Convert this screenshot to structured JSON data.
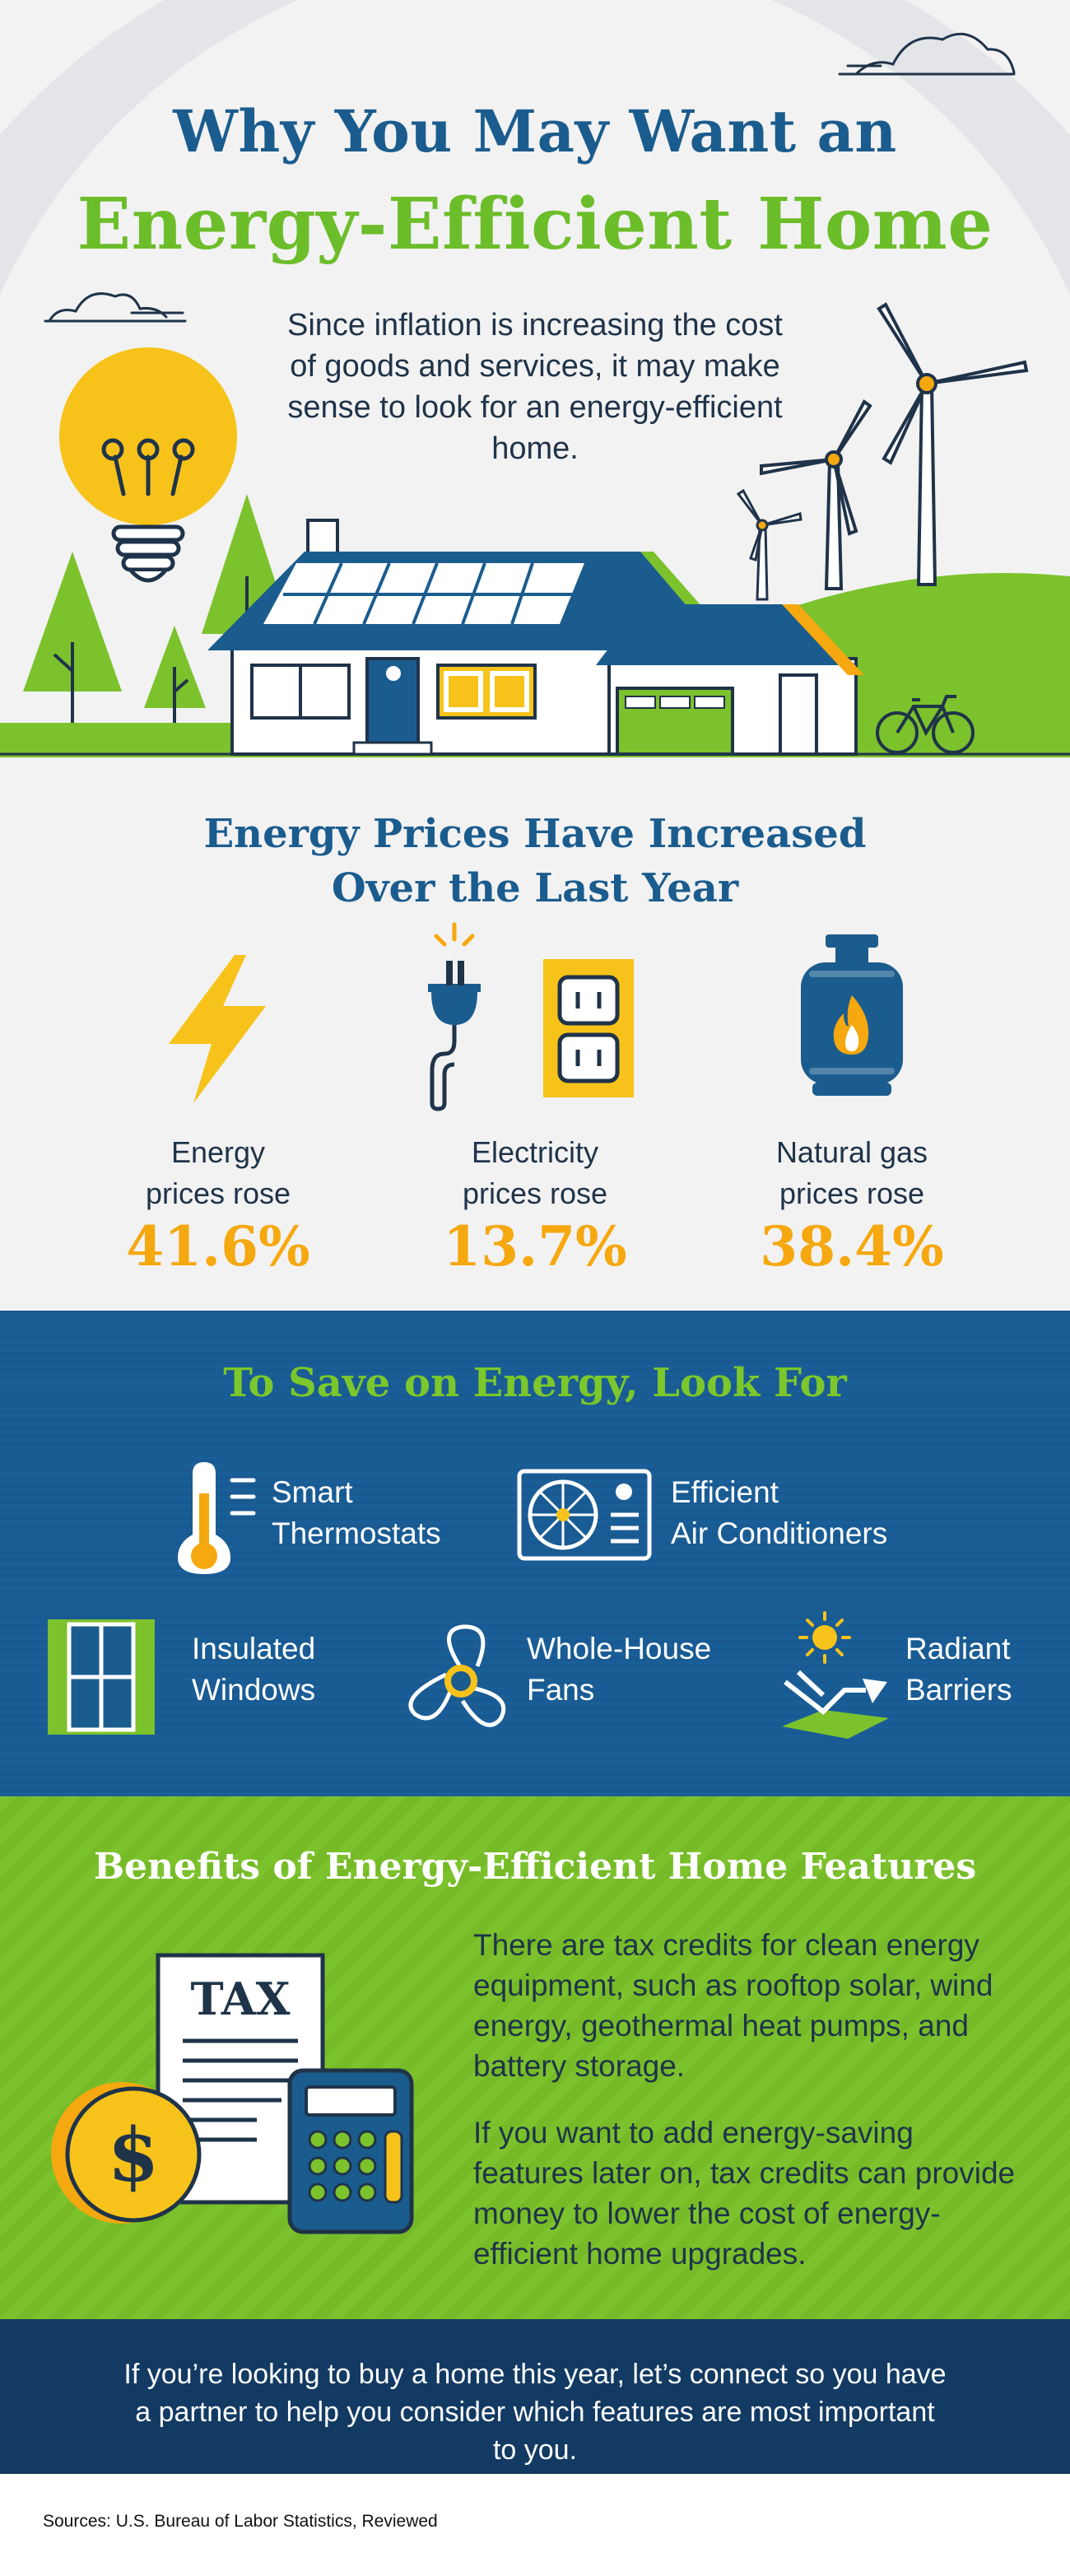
{
  "hero": {
    "title_line1": "Why You May Want an",
    "title_line2": "Energy-Efficient Home",
    "intro": "Since inflation is increasing the cost of goods and services, it may make sense to look for an energy-efficient home."
  },
  "prices": {
    "title_line1": "Energy Prices Have Increased",
    "title_line2": "Over the Last Year",
    "items": [
      {
        "label_line1": "Energy",
        "label_line2": "prices rose",
        "value": "41.6%",
        "icon": "lightning-bolt-icon"
      },
      {
        "label_line1": "Electricity",
        "label_line2": "prices rose",
        "value": "13.7%",
        "icon": "power-plug-outlet-icon"
      },
      {
        "label_line1": "Natural gas",
        "label_line2": "prices rose",
        "value": "38.4%",
        "icon": "gas-tank-flame-icon"
      }
    ]
  },
  "save": {
    "title": "To Save on Energy, Look For",
    "features": [
      {
        "line1": "Smart",
        "line2": "Thermostats",
        "icon": "thermometer-icon"
      },
      {
        "line1": "Efficient",
        "line2": "Air Conditioners",
        "icon": "air-conditioner-icon"
      },
      {
        "line1": "Insulated",
        "line2": "Windows",
        "icon": "window-icon"
      },
      {
        "line1": "Whole-House",
        "line2": "Fans",
        "icon": "fan-icon"
      },
      {
        "line1": "Radiant",
        "line2": "Barriers",
        "icon": "sun-reflect-icon"
      }
    ]
  },
  "benefits": {
    "title": "Benefits of Energy-Efficient Home Features",
    "tax_label": "TAX",
    "dollar_sign": "$",
    "paragraph1": "There are tax credits for clean energy equipment, such as rooftop solar, wind energy, geothermal heat pumps, and battery storage.",
    "paragraph2": "If you want to add energy-saving features later on, tax credits can provide money to lower the cost of energy-efficient home upgrades."
  },
  "cta": {
    "text": "If you’re looking to buy a home this year, let’s connect so you have a partner to help you consider which features are most important to you."
  },
  "sources": {
    "text": "Sources: U.S. Bureau of Labor Statistics, Reviewed"
  },
  "colors": {
    "navy": "#1b5c8e",
    "green": "#6cbd2a",
    "yellow": "#f5a80f",
    "dark_navy": "#123a63",
    "text_dark": "#1f3349"
  }
}
